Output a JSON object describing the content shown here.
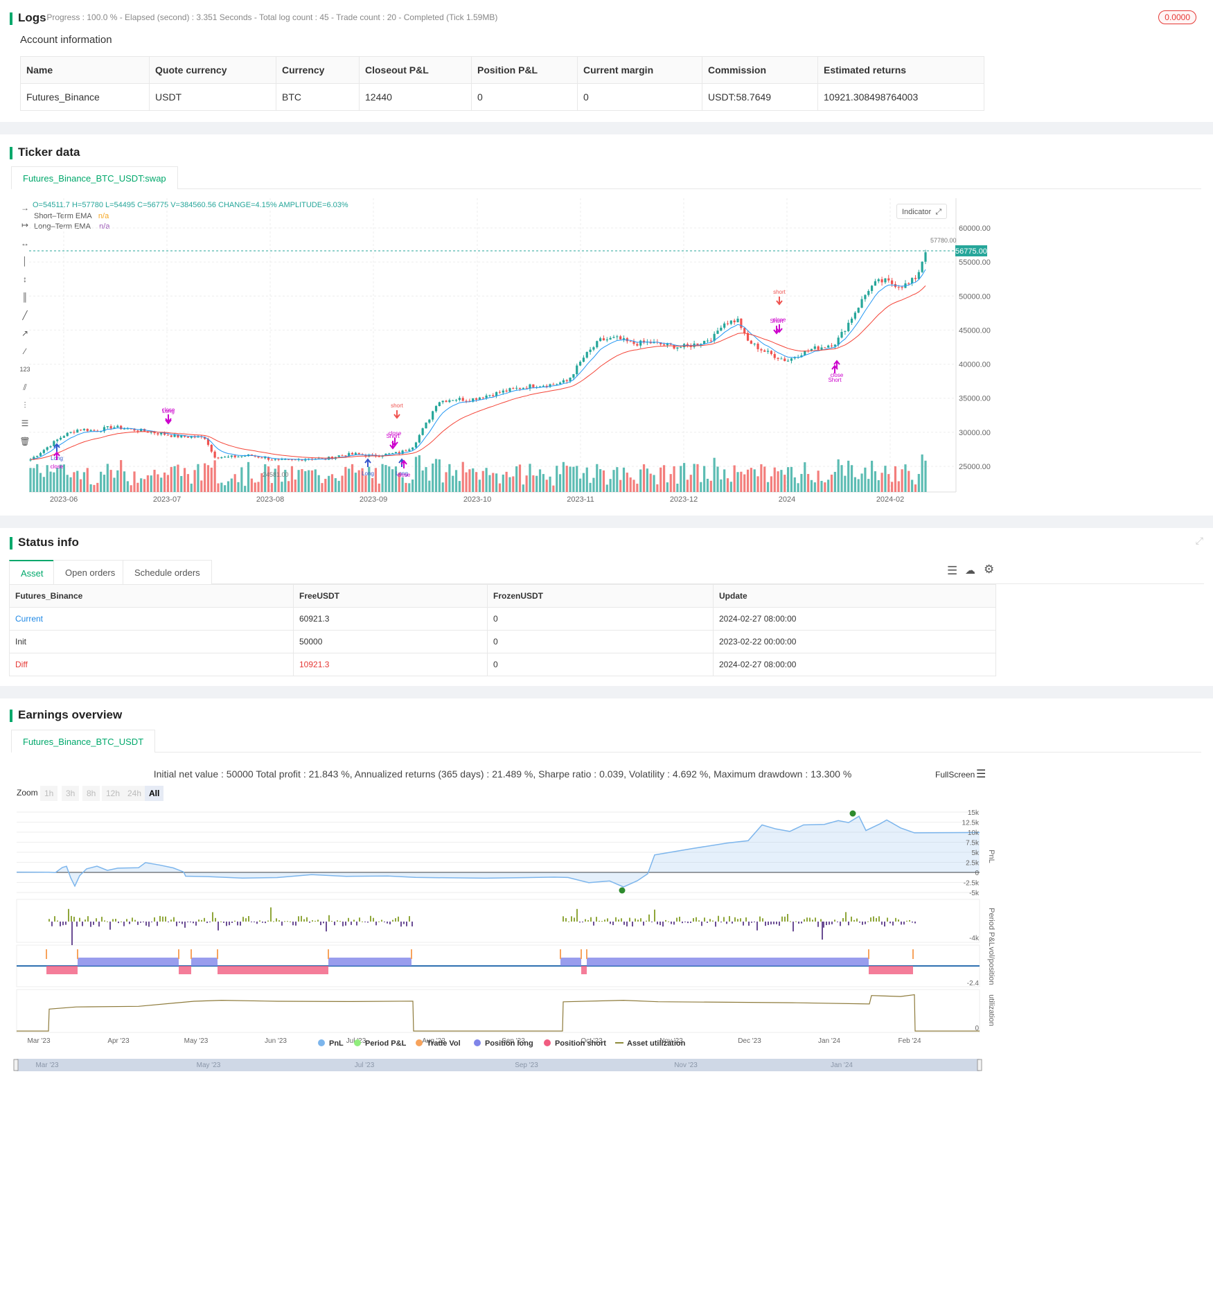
{
  "logs": {
    "title": "Logs",
    "status": "- Progress : 100.0 % - Elapsed (second) : 3.351 Seconds - Total log count : 45 - Trade count : 20 - Completed (Tick 1.59MB)",
    "badge": "0.0000"
  },
  "account": {
    "title": "Account information",
    "headers": [
      "Name",
      "Quote currency",
      "Currency",
      "Closeout P&L",
      "Position P&L",
      "Current margin",
      "Commission",
      "Estimated returns"
    ],
    "row": [
      "Futures_Binance",
      "USDT",
      "BTC",
      "12440",
      "0",
      "0",
      "USDT:58.7649",
      "10921.308498764003"
    ]
  },
  "ticker": {
    "title": "Ticker data",
    "tab": "Futures_Binance_BTC_USDT:swap",
    "ohlc": "O=54511.7 H=57780 L=54495 C=56775 V=384560.56 CHANGE=4.15% AMPLITUDE=6.03%",
    "legend": [
      {
        "name": "Short–Term EMA",
        "value": "n/a",
        "color": "#f5a623"
      },
      {
        "name": "Long–Term EMA",
        "value": "n/a",
        "color": "#9b59b6"
      }
    ],
    "indicator_btn": "Indicator",
    "price_ticks": [
      "60000.00",
      "55000.00",
      "50000.00",
      "45000.00",
      "40000.00",
      "35000.00",
      "30000.00",
      "25000.00"
    ],
    "last_price": "56775.00",
    "high_label": "57780.00",
    "low_label": "24581.00",
    "date_ticks": [
      "2023-06",
      "2023-07",
      "2023-08",
      "2023-09",
      "2023-10",
      "2023-11",
      "2023-12",
      "2024",
      "2024-02"
    ],
    "colors": {
      "up": "#26a69a",
      "down": "#ef5350",
      "ema_short": "#2196f3",
      "ema_long": "#f44336",
      "signal": "#cc00cc",
      "accent": "#00a86b"
    },
    "signals": {
      "long": "Long",
      "short": "Short",
      "short_lower": "short",
      "close": "close"
    }
  },
  "status": {
    "title": "Status info",
    "tabs": [
      "Asset",
      "Open orders",
      "Schedule orders"
    ],
    "headers": [
      "Futures_Binance",
      "FreeUSDT",
      "FrozenUSDT",
      "Update"
    ],
    "rows": [
      [
        "Current",
        "60921.3",
        "0",
        "2024-02-27 08:00:00"
      ],
      [
        "Init",
        "50000",
        "0",
        "2023-02-22 00:00:00"
      ],
      [
        "Diff",
        "10921.3",
        "0",
        "2024-02-27 08:00:00"
      ]
    ]
  },
  "earnings": {
    "title": "Earnings overview",
    "tab": "Futures_Binance_BTC_USDT",
    "summary": "Initial net value : 50000 Total profit : 21.843 %, Annualized returns (365 days) : 21.489 %, Sharpe ratio : 0.039, Volatility : 4.692 %, Maximum drawdown : 13.300 %",
    "fullscreen": "FullScreen",
    "zoom_label": "Zoom",
    "zoom_options": [
      "1h",
      "3h",
      "8h",
      "12h",
      "24h",
      "All"
    ],
    "pnl_ticks": [
      "15k",
      "12.5k",
      "10k",
      "7.5k",
      "5k",
      "2.5k",
      "0",
      "-2.5k",
      "-5k"
    ],
    "period_tick": "-4k",
    "vol_tick": "-2.4",
    "util_tick": "0",
    "axis_titles": [
      "PnL",
      "Period P&L",
      "vol/position",
      "utilization"
    ],
    "month_ticks": [
      "Mar '23",
      "Apr '23",
      "May '23",
      "Jun '23",
      "Jul '23",
      "Aug '23",
      "Sep '23",
      "Oct '23",
      "Nov '23",
      "Dec '23",
      "Jan '24",
      "Feb '24"
    ],
    "nav_ticks": [
      "Mar '23",
      "May '23",
      "Jul '23",
      "Sep '23",
      "Nov '23",
      "Jan '24"
    ],
    "legend": [
      {
        "name": "PnL",
        "color": "#7cb5ec"
      },
      {
        "name": "Period P&L",
        "color": "#90ed7d"
      },
      {
        "name": "Trade Vol",
        "color": "#f7a35c"
      },
      {
        "name": "Position long",
        "color": "#8085e9"
      },
      {
        "name": "Position short",
        "color": "#f15c80"
      },
      {
        "name": "Asset utilization",
        "color": "#8d8a3a"
      }
    ]
  }
}
